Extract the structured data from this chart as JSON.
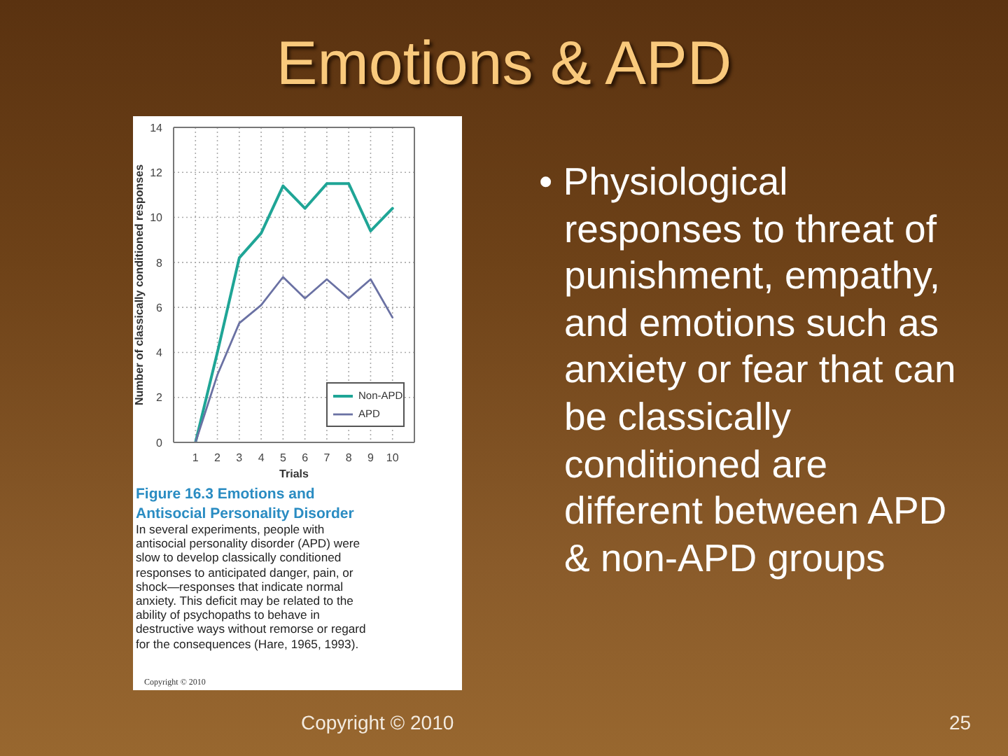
{
  "chart_data": {
    "type": "line",
    "title": "Emotions & APD",
    "xlabel": "Trials",
    "ylabel": "Number of classically conditioned responses",
    "x": [
      1,
      2,
      3,
      4,
      5,
      6,
      7,
      8,
      9,
      10
    ],
    "series": [
      {
        "name": "Non-APD",
        "color": "#1fa596",
        "values": [
          0,
          4.0,
          8.2,
          9.3,
          11.4,
          10.4,
          11.5,
          11.5,
          9.4,
          10.4
        ]
      },
      {
        "name": "APD",
        "color": "#6a71a3",
        "values": [
          0,
          3.0,
          5.3,
          6.1,
          7.35,
          6.4,
          7.25,
          6.4,
          7.25,
          5.55
        ]
      }
    ],
    "xlim": [
      0,
      11
    ],
    "xticks": [
      1,
      2,
      3,
      4,
      5,
      6,
      7,
      8,
      9,
      10
    ],
    "ylim": [
      0,
      14
    ],
    "yticks": [
      0,
      2,
      4,
      6,
      8,
      10,
      12,
      14
    ],
    "grid": true,
    "legend": "bottom right",
    "marker": "none",
    "line_style": "solid",
    "annotations": [
      "Figure 16.3 Emotions and Antisocial Personality Disorder",
      "In several experiments, people with antisocial personality disorder (APD) were slow to develop classically conditioned responses to anticipated danger, pain, or shock—responses that indicate normal anxiety. This deficit may be related to the ability of psychopaths to behave in destructive ways without remorse or regard for the consequences (Hare, 1965, 1993).",
      "Copyright © 2010",
      "• Physiological responses to threat of punishment, empathy, and emotions such as anxiety or fear that can be classically conditioned are different between APD & non-APD groups",
      "Copyright © 2010",
      "25"
    ]
  }
}
